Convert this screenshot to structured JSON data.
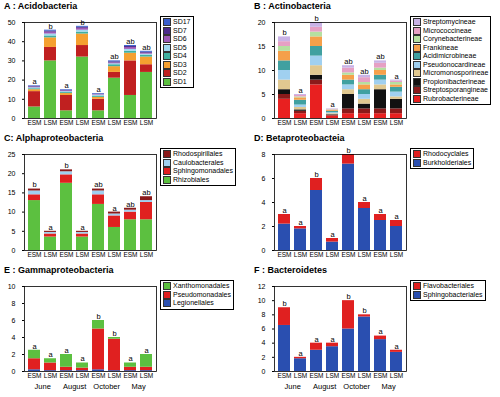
{
  "chart_data": [
    {
      "type": "bar",
      "stacked": true,
      "title": "A : Acidobacteria",
      "categories": [
        "ESM",
        "LSM",
        "ESM",
        "LSM",
        "ESM",
        "LSM",
        "ESM",
        "LSM"
      ],
      "ylim": [
        0,
        50
      ],
      "yticks": [
        0,
        10,
        20,
        30,
        40,
        50
      ],
      "annotations": [
        "a",
        "b",
        "a",
        "b",
        "a",
        "ab",
        "ab",
        "ab"
      ],
      "series": [
        {
          "name": "SD17",
          "color": "#3a5fcd",
          "values": [
            0.3,
            0.5,
            0.3,
            0.5,
            0.3,
            0.5,
            0.5,
            0.5
          ]
        },
        {
          "name": "SD7",
          "color": "#4a2a8a",
          "values": [
            0.3,
            0.5,
            0.3,
            0.5,
            0.2,
            0.5,
            0.5,
            0.5
          ]
        },
        {
          "name": "SD6",
          "color": "#9b59b6",
          "values": [
            0.4,
            1,
            0.4,
            1,
            0.3,
            0.5,
            1,
            0.5
          ]
        },
        {
          "name": "SD5",
          "color": "#a0d8f0",
          "values": [
            0.5,
            1,
            0.5,
            1,
            0.5,
            0.5,
            1,
            0.5
          ]
        },
        {
          "name": "SD4",
          "color": "#40b0a0",
          "values": [
            0.5,
            1,
            0.5,
            1,
            0.7,
            1,
            1,
            1
          ]
        },
        {
          "name": "SD3",
          "color": "#f5a030",
          "values": [
            1,
            5,
            1,
            6,
            1,
            3,
            4,
            4
          ]
        },
        {
          "name": "SD2",
          "color": "#c02020",
          "values": [
            8,
            7,
            8,
            6,
            6,
            3,
            18,
            4
          ]
        },
        {
          "name": "SD1",
          "color": "#5cc040",
          "values": [
            6,
            30,
            4,
            32,
            4,
            21,
            12,
            24
          ]
        }
      ]
    },
    {
      "type": "bar",
      "stacked": true,
      "title": "B : Actinobacteria",
      "categories": [
        "ESM",
        "LSM",
        "ESM",
        "LSM",
        "ESM",
        "LSM",
        "ESM",
        "LSM"
      ],
      "ylim": [
        0,
        20
      ],
      "yticks": [
        0,
        5,
        10,
        15,
        20
      ],
      "annotations": [
        "b",
        "a",
        "b",
        "a",
        "ab",
        "ab",
        "ab",
        "a"
      ],
      "series": [
        {
          "name": "Streptomycineae",
          "color": "#c9b3e6",
          "values": [
            1,
            0.2,
            1,
            0.1,
            0.5,
            0.5,
            0.5,
            0.2
          ]
        },
        {
          "name": "Micrococcineae",
          "color": "#e6a0c4",
          "values": [
            1,
            0.3,
            1,
            0.1,
            1,
            1,
            1,
            0.3
          ]
        },
        {
          "name": "Corynebacterineae",
          "color": "#b5e0a0",
          "values": [
            1,
            0.2,
            1,
            0.1,
            0.5,
            0.5,
            0.5,
            0.5
          ]
        },
        {
          "name": "Frankineae",
          "color": "#f5a04a",
          "values": [
            2,
            0.5,
            2,
            0.2,
            1,
            1,
            1,
            0.5
          ]
        },
        {
          "name": "Acidimicrobineae",
          "color": "#40a0a0",
          "values": [
            2,
            1,
            2,
            0.3,
            1,
            1,
            1,
            1
          ]
        },
        {
          "name": "Pseudonocardineae",
          "color": "#a0d0f0",
          "values": [
            2,
            0.5,
            2,
            0.2,
            1,
            1,
            1,
            1
          ]
        },
        {
          "name": "Micromonosporineae",
          "color": "#e0c890",
          "values": [
            2,
            0.5,
            2,
            0.2,
            1,
            1,
            1,
            0.5
          ]
        },
        {
          "name": "Propionibacterineae",
          "color": "#111111",
          "values": [
            1,
            0.3,
            1,
            0.1,
            3,
            1,
            4,
            2
          ]
        },
        {
          "name": "Streptosporangineae",
          "color": "#8b1a1a",
          "values": [
            1,
            0.5,
            1,
            0.2,
            1,
            1,
            1,
            1
          ]
        },
        {
          "name": "Rubrobacterineae",
          "color": "#e82020",
          "values": [
            4,
            1,
            7,
            0.5,
            1,
            1,
            1,
            1
          ]
        }
      ]
    },
    {
      "type": "bar",
      "stacked": true,
      "title": "C: Alphaproteobacteria",
      "categories": [
        "ESM",
        "LSM",
        "ESM",
        "LSM",
        "ESM",
        "LSM",
        "ESM",
        "LSM"
      ],
      "ylim": [
        0,
        25
      ],
      "yticks": [
        0,
        5,
        10,
        15,
        20,
        25
      ],
      "annotations": [
        "b",
        "a",
        "b",
        "a",
        "ab",
        "a",
        "ab",
        "ab"
      ],
      "series": [
        {
          "name": "Rhodospirillales",
          "color": "#8b1a1a",
          "values": [
            0.5,
            0.3,
            0.5,
            0.3,
            0.5,
            0.5,
            0.5,
            1
          ]
        },
        {
          "name": "Caulobacterales",
          "color": "#a0d0f0",
          "values": [
            1,
            0.4,
            0.8,
            0.4,
            1,
            0.5,
            0.5,
            0.5
          ]
        },
        {
          "name": "Sphingomonadales",
          "color": "#e02020",
          "values": [
            1.5,
            0.8,
            2.2,
            0.8,
            2.5,
            3,
            2,
            4.5
          ]
        },
        {
          "name": "Rhizobiales",
          "color": "#5cc040",
          "values": [
            13,
            3.5,
            17.5,
            3.5,
            12,
            6,
            8,
            8
          ]
        }
      ]
    },
    {
      "type": "bar",
      "stacked": true,
      "title": "D: Betaproteobacteia",
      "categories": [
        "ESM",
        "LSM",
        "ESM",
        "LSM",
        "ESM",
        "LSM",
        "ESM",
        "LSM"
      ],
      "ylim": [
        0,
        8
      ],
      "yticks": [
        0,
        2,
        4,
        6,
        8
      ],
      "annotations": [
        "a",
        "a",
        "b",
        "a",
        "b",
        "a",
        "a",
        "a"
      ],
      "series": [
        {
          "name": "Rhodocyclales",
          "color": "#e02020",
          "values": [
            0.8,
            0.2,
            1,
            0.3,
            0.8,
            0.5,
            0.5,
            0.5
          ]
        },
        {
          "name": "Burkholderiales",
          "color": "#2a4fb0",
          "values": [
            2.2,
            1.8,
            5,
            0.7,
            7.2,
            3.5,
            2.5,
            2
          ]
        }
      ]
    },
    {
      "type": "bar",
      "stacked": true,
      "title": "E : Gammaproteobacteria",
      "categories": [
        "ESM",
        "LSM",
        "ESM",
        "LSM",
        "ESM",
        "LSM",
        "ESM",
        "LSM"
      ],
      "ylim": [
        0,
        10
      ],
      "yticks": [
        0,
        2,
        4,
        6,
        8,
        10
      ],
      "annotations": [
        "a",
        "a",
        "a",
        "a",
        "b",
        "b",
        "a",
        "a"
      ],
      "series": [
        {
          "name": "Xanthomonadales",
          "color": "#5cc040",
          "values": [
            1,
            0.5,
            1.5,
            0.6,
            1,
            0.2,
            0.5,
            1.5
          ]
        },
        {
          "name": "Pseudomonadales",
          "color": "#e02020",
          "values": [
            1.3,
            0.9,
            0.4,
            0.3,
            4.8,
            3.7,
            0.4,
            0.4
          ]
        },
        {
          "name": "Legionellales",
          "color": "#2a4fb0",
          "values": [
            0.2,
            0.1,
            0.1,
            0.1,
            0.2,
            0.1,
            0.1,
            0.1
          ]
        }
      ]
    },
    {
      "type": "bar",
      "stacked": true,
      "title": "F : Bacteroidetes",
      "categories": [
        "ESM",
        "LSM",
        "ESM",
        "LSM",
        "ESM",
        "LSM",
        "ESM",
        "LSM"
      ],
      "ylim": [
        0,
        12
      ],
      "yticks": [
        0,
        2,
        4,
        6,
        8,
        10,
        12
      ],
      "annotations": [
        "b",
        "a",
        "a",
        "a",
        "b",
        "b",
        "a",
        "a"
      ],
      "series": [
        {
          "name": "Flavobacteriales",
          "color": "#e02020",
          "values": [
            2.5,
            0.2,
            1,
            0.5,
            4,
            0.3,
            0.5,
            0.3
          ]
        },
        {
          "name": "Sphingobacteriales",
          "color": "#2a4fb0",
          "values": [
            6.5,
            1.8,
            3,
            3.5,
            6,
            7.7,
            4.5,
            2.7
          ]
        }
      ]
    }
  ],
  "x_groups": [
    "June",
    "August",
    "October",
    "May"
  ]
}
